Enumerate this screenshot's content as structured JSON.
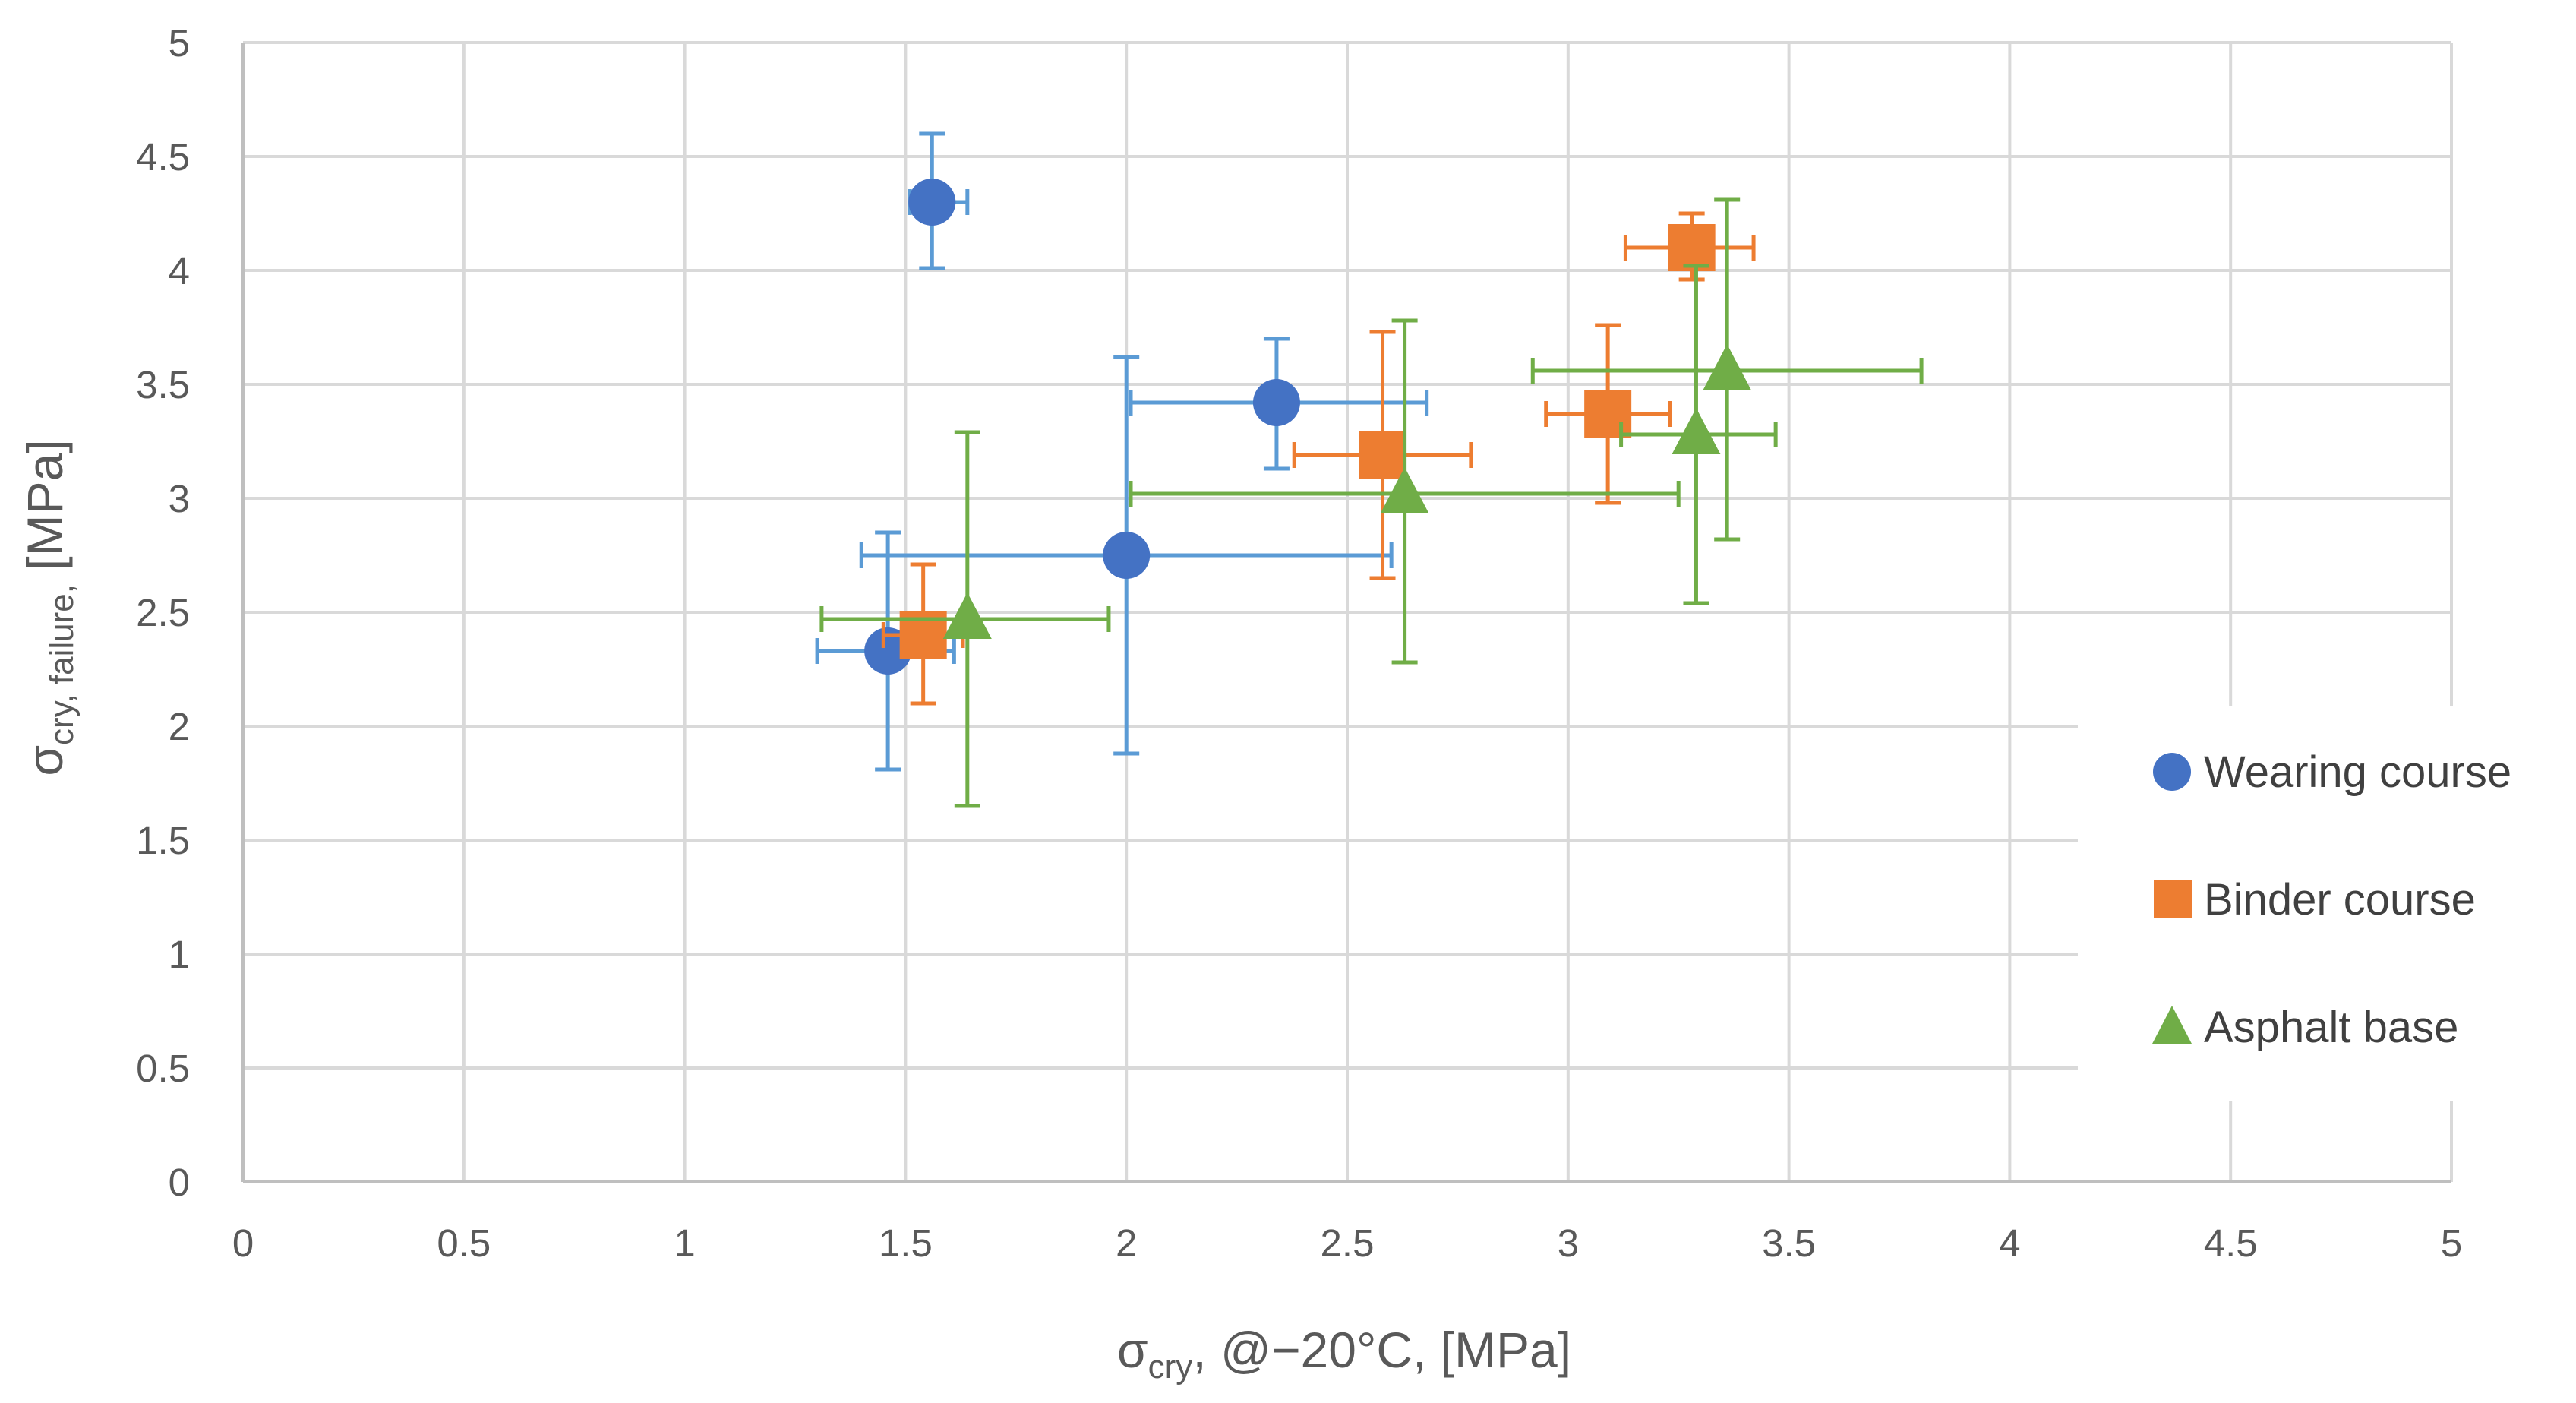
{
  "chart_data": {
    "type": "scatter",
    "xlabel": {
      "main": "σ",
      "sub": "cry",
      "rest": ", @−20°C, [MPa]"
    },
    "ylabel": {
      "main": "σ",
      "sub": "cry, failure,",
      "rest": " [MPa]"
    },
    "xlim": [
      0,
      5
    ],
    "ylim": [
      0,
      5
    ],
    "grid": true,
    "legend_position": "right",
    "x_ticks": [
      "0",
      "0.5",
      "1",
      "1.5",
      "2",
      "2.5",
      "3",
      "3.5",
      "4",
      "4.5",
      "5"
    ],
    "y_ticks": [
      "0",
      "0.5",
      "1",
      "1.5",
      "2",
      "2.5",
      "3",
      "3.5",
      "4",
      "4.5",
      "5"
    ],
    "colors": {
      "grid": "#d9d9d9",
      "axis": "#bfbfbf",
      "wearing": "#4472c4",
      "wearing_err": "#5b9bd5",
      "binder": "#ed7d31",
      "base": "#70ad47"
    },
    "series": [
      {
        "name": "Wearing course",
        "marker": "circle",
        "points": [
          {
            "x": 1.56,
            "y": 4.3,
            "xlo": 1.51,
            "xhi": 1.64,
            "ylo": 4.01,
            "yhi": 4.6
          },
          {
            "x": 2.34,
            "y": 3.42,
            "xlo": 2.01,
            "xhi": 2.68,
            "ylo": 3.13,
            "yhi": 3.7
          },
          {
            "x": 2.0,
            "y": 2.75,
            "xlo": 1.4,
            "xhi": 2.6,
            "ylo": 1.88,
            "yhi": 3.62
          },
          {
            "x": 1.46,
            "y": 2.33,
            "xlo": 1.3,
            "xhi": 1.61,
            "ylo": 1.81,
            "yhi": 2.85
          }
        ]
      },
      {
        "name": "Binder course",
        "marker": "square",
        "points": [
          {
            "x": 3.28,
            "y": 4.1,
            "xlo": 3.13,
            "xhi": 3.42,
            "ylo": 3.96,
            "yhi": 4.25
          },
          {
            "x": 3.09,
            "y": 3.37,
            "xlo": 2.95,
            "xhi": 3.23,
            "ylo": 2.98,
            "yhi": 3.76
          },
          {
            "x": 2.58,
            "y": 3.19,
            "xlo": 2.38,
            "xhi": 2.78,
            "ylo": 2.65,
            "yhi": 3.73
          },
          {
            "x": 1.54,
            "y": 2.4,
            "xlo": 1.45,
            "xhi": 1.63,
            "ylo": 2.1,
            "yhi": 2.71
          }
        ]
      },
      {
        "name": "Asphalt base",
        "marker": "triangle",
        "points": [
          {
            "x": 3.36,
            "y": 3.56,
            "xlo": 2.92,
            "xhi": 3.8,
            "ylo": 2.82,
            "yhi": 4.31
          },
          {
            "x": 3.29,
            "y": 3.28,
            "xlo": 3.12,
            "xhi": 3.47,
            "ylo": 2.54,
            "yhi": 4.02
          },
          {
            "x": 2.63,
            "y": 3.02,
            "xlo": 2.01,
            "xhi": 3.25,
            "ylo": 2.28,
            "yhi": 3.78
          },
          {
            "x": 1.64,
            "y": 2.47,
            "xlo": 1.31,
            "xhi": 1.96,
            "ylo": 1.65,
            "yhi": 3.29
          }
        ]
      }
    ]
  }
}
